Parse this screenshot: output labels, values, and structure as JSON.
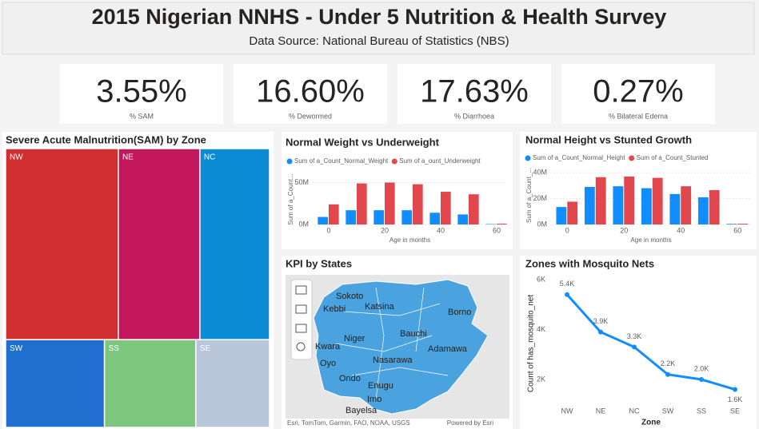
{
  "header": {
    "title": "2015 Nigerian NNHS - Under 5 Nutrition & Health Survey",
    "subtitle": "Data Source: National Bureau of Statistics (NBS)"
  },
  "kpis": [
    {
      "value": "3.55%",
      "label": "% SAM"
    },
    {
      "value": "16.60%",
      "label": "% Dewormed"
    },
    {
      "value": "17.63%",
      "label": "% Diarrhoea"
    },
    {
      "value": "0.27%",
      "label": "% Bilateral Edema"
    }
  ],
  "chart_data": [
    {
      "type": "treemap",
      "title": "Severe Acute Malnutrition(SAM) by Zone",
      "categories": [
        "NW",
        "NE",
        "NC",
        "SW",
        "SS",
        "SE"
      ],
      "values": [
        29.3,
        21.2,
        18.1,
        11.8,
        10.9,
        8.8
      ],
      "colors": [
        "#d12f2f",
        "#c2185b",
        "#0b8bd3",
        "#1e6fd0",
        "#7dc67e",
        "#b9c6da"
      ]
    },
    {
      "type": "bar",
      "title": "Normal Weight vs Underweight",
      "x_label": "Age in months",
      "y_label": "Sum of a_Count...",
      "x": [
        0,
        10,
        20,
        30,
        40,
        50,
        60
      ],
      "xlim": [
        -6,
        64
      ],
      "xticks": [
        0,
        20,
        40,
        60
      ],
      "ylim": [
        0,
        60000000
      ],
      "yticks": [
        {
          "value": 0,
          "label": "0M"
        },
        {
          "value": 50000000,
          "label": "50M"
        }
      ],
      "series": [
        {
          "name": "Sum of a_Count_Normal_Weight",
          "color": "#118dff",
          "values": [
            9000000,
            17000000,
            17000000,
            17000000,
            14000000,
            12000000,
            500000
          ]
        },
        {
          "name": "Sum of a_ount_Underweight",
          "color": "#e2474d",
          "values": [
            24000000,
            49000000,
            50000000,
            48000000,
            39000000,
            36000000,
            1000000
          ]
        }
      ]
    },
    {
      "type": "bar",
      "title": "Normal Height vs Stunted Growth",
      "x_label": "Age in months",
      "y_label": "Sum of a_Count_...",
      "x": [
        0,
        10,
        20,
        30,
        40,
        50,
        60
      ],
      "xlim": [
        -6,
        65
      ],
      "xticks": [
        0,
        20,
        40,
        60
      ],
      "ylim": [
        0,
        45000000
      ],
      "yticks": [
        {
          "value": 0,
          "label": "0M"
        },
        {
          "value": 20000000,
          "label": "20M"
        },
        {
          "value": 40000000,
          "label": "40M"
        }
      ],
      "series": [
        {
          "name": "Sum of a_Count_Normal_Height",
          "color": "#118dff",
          "values": [
            13500000,
            29000000,
            29500000,
            28000000,
            23500000,
            21000000,
            500000
          ]
        },
        {
          "name": "Sum of a_Count_Stunted",
          "color": "#e2474d",
          "values": [
            17600000,
            36500000,
            37000000,
            36000000,
            29500000,
            26500000,
            600000
          ]
        }
      ]
    },
    {
      "type": "line",
      "title": "Zones with Mosquito Nets",
      "x_label": "Zone",
      "y_label": "Count of has_mosquito_net",
      "categories": [
        "NW",
        "NE",
        "NC",
        "SW",
        "SS",
        "SE"
      ],
      "values": [
        5400,
        3900,
        3300,
        2200,
        2000,
        1600
      ],
      "value_labels": [
        "5.4K",
        "3.9K",
        "3.3K",
        "2.2K",
        "2.0K",
        "1.6K"
      ],
      "color": "#118dff",
      "ylim": [
        880,
        6000
      ],
      "yticks": [
        {
          "value": 2000,
          "label": "2K"
        },
        {
          "value": 4000,
          "label": "4K"
        },
        {
          "value": 6000,
          "label": "6K"
        }
      ]
    }
  ],
  "map": {
    "title": "KPI by States",
    "labels": [
      "Sokoto",
      "Katsina",
      "Kebbi",
      "Borno",
      "Bauchi",
      "Niger",
      "Kwara",
      "Adamawa",
      "Oyo",
      "Nasarawa",
      "Ondo",
      "Enugu",
      "Imo",
      "Bayelsa"
    ],
    "attribution": "Esri, TomTom, Garmin, FAO, NOAA, USGS",
    "powered": "Powered by Esri"
  }
}
